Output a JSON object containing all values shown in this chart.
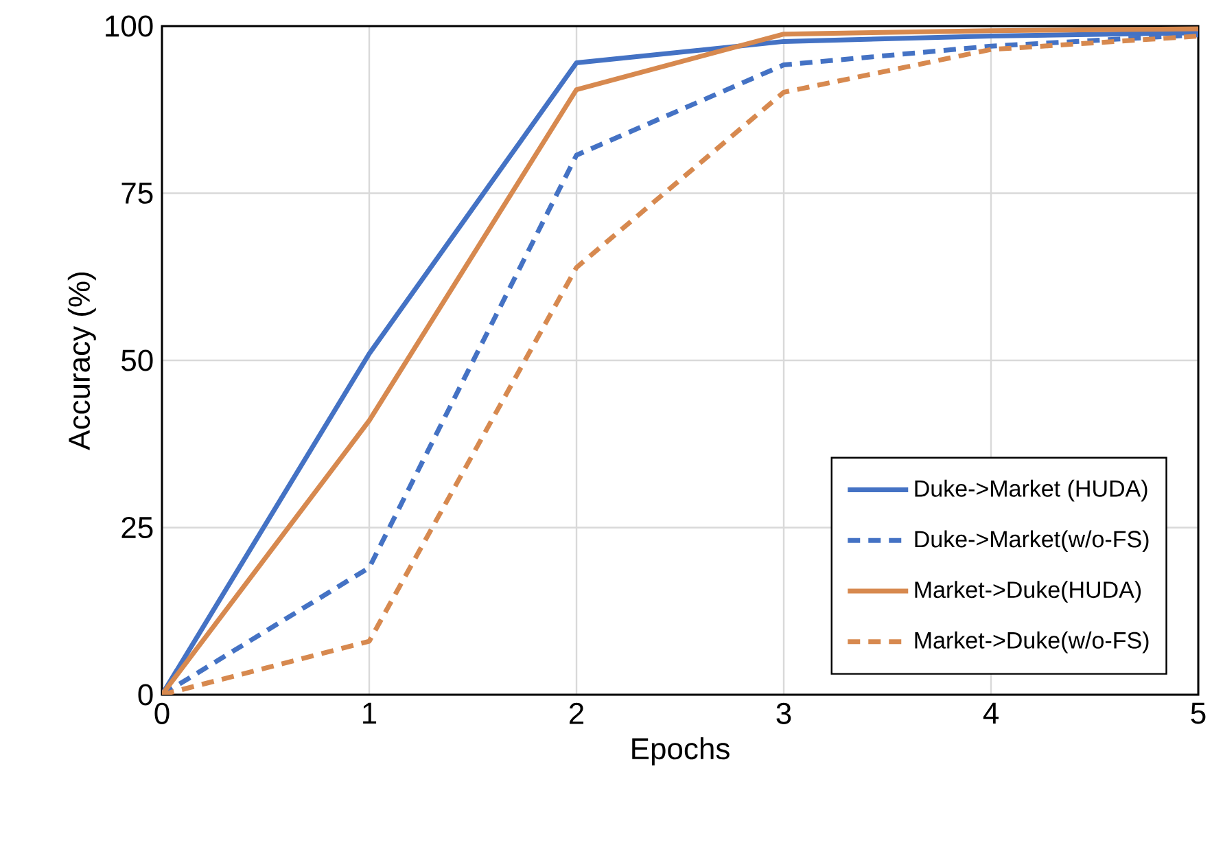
{
  "chart_data": {
    "type": "line",
    "xlabel": "Epochs",
    "ylabel": "Accuracy (%)",
    "x": [
      0,
      1,
      2,
      3,
      4,
      5
    ],
    "series": [
      {
        "name": "Duke->Market (HUDA)",
        "color": "#4472c4",
        "line_style": "solid",
        "values": [
          0,
          51,
          94.5,
          97.7,
          98.5,
          99
        ]
      },
      {
        "name": "Duke->Market(w/o-FS)",
        "color": "#4472c4",
        "line_style": "dashed",
        "values": [
          0,
          19,
          80.7,
          94.2,
          97,
          98.7
        ]
      },
      {
        "name": "Market->Duke(HUDA)",
        "color": "#d7894f",
        "line_style": "solid",
        "values": [
          0,
          41,
          90.5,
          98.8,
          99.3,
          99.6
        ]
      },
      {
        "name": "Market->Duke(w/o-FS)",
        "color": "#d7894f",
        "line_style": "dashed",
        "values": [
          0,
          8,
          63.9,
          90.1,
          96.5,
          98.5
        ]
      }
    ],
    "xlim": [
      0,
      5
    ],
    "ylim": [
      0,
      100
    ],
    "xticks": [
      0,
      1,
      2,
      3,
      4,
      5
    ],
    "yticks": [
      0,
      25,
      50,
      75,
      100
    ],
    "grid": true,
    "legend": "bottom right",
    "marker": "none"
  }
}
